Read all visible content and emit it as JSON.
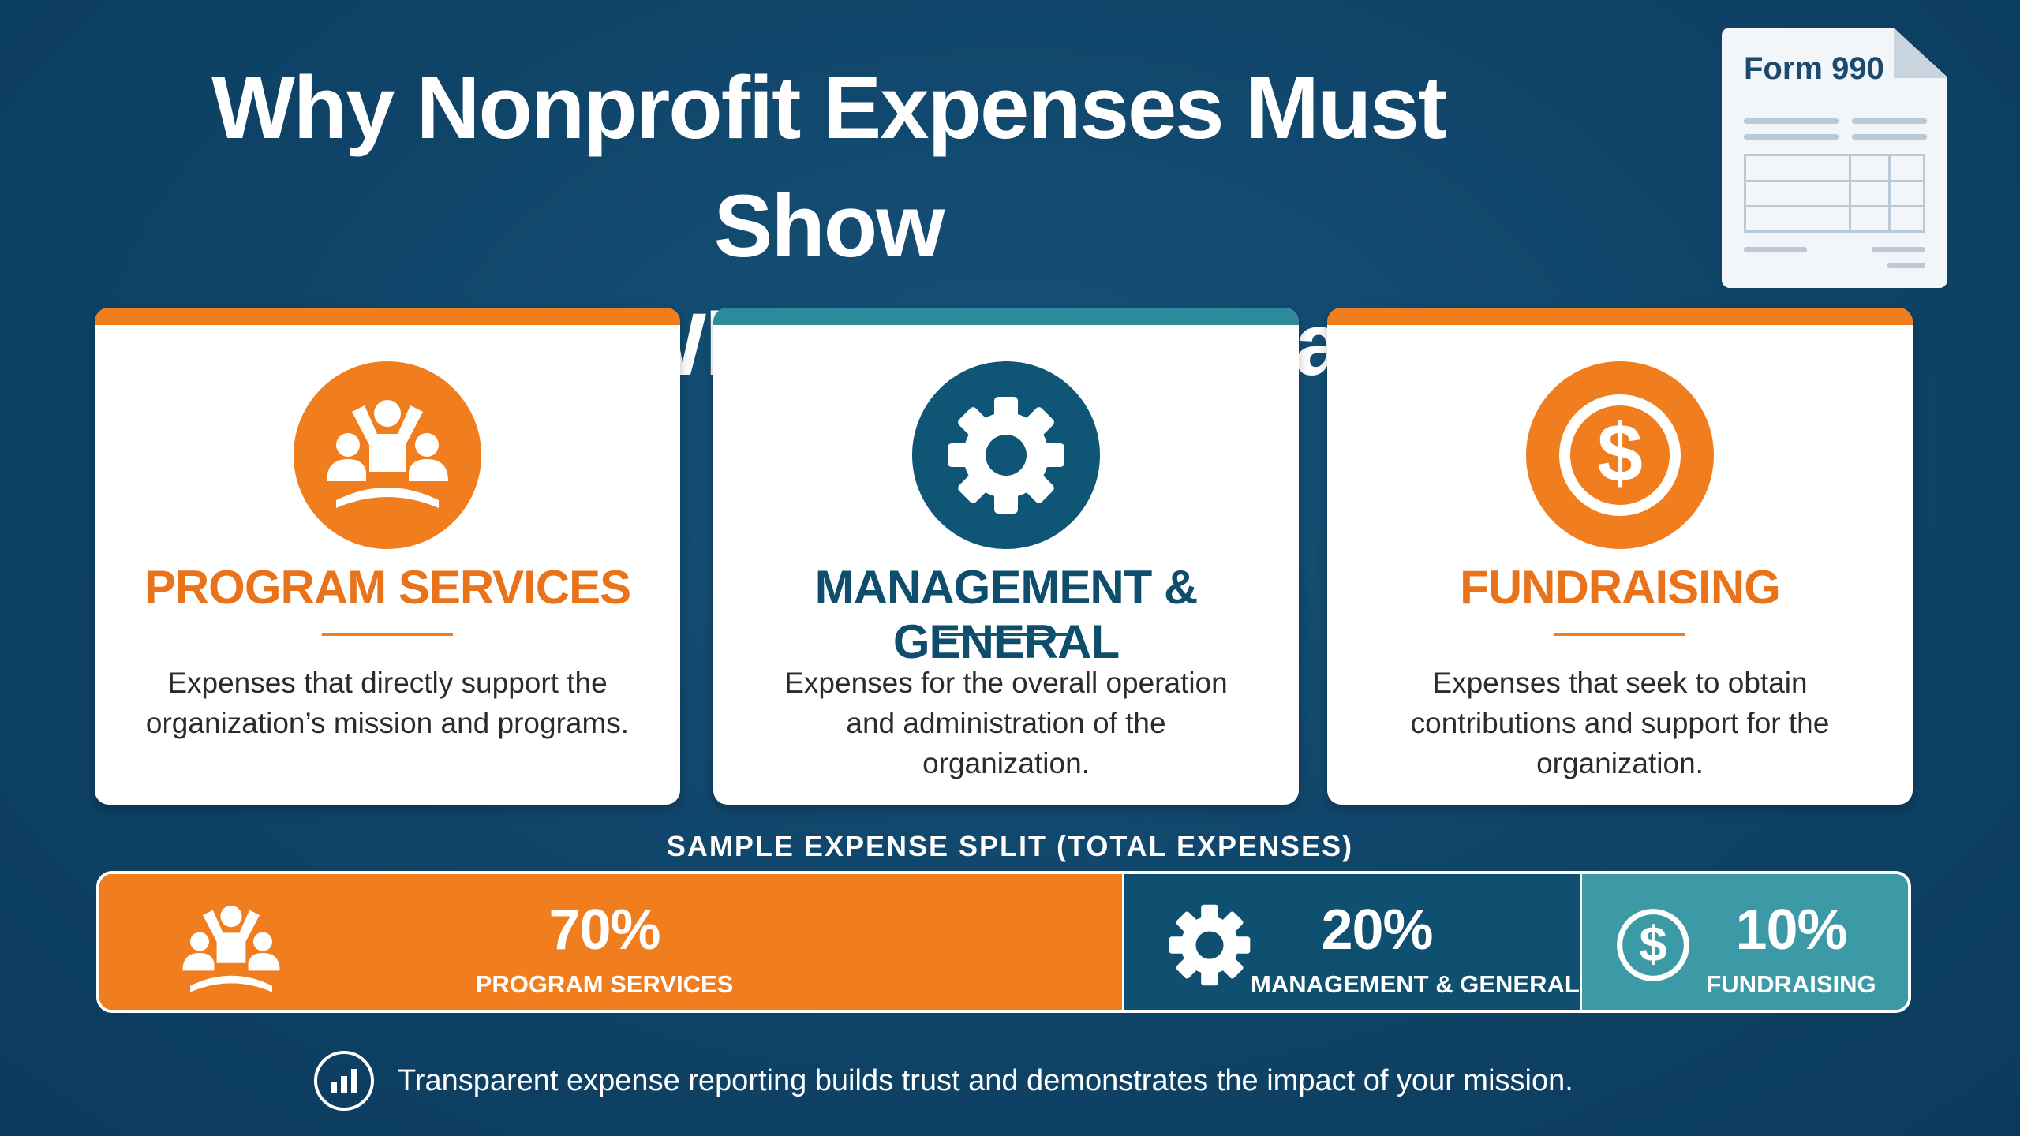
{
  "title": {
    "line1": "Why Nonprofit Expenses Must Show",
    "line2": "More Than What Was Purchased"
  },
  "document": {
    "label": "Form 990",
    "icon": "form-document-icon"
  },
  "colors": {
    "orange": "#F07E1F",
    "navy": "#0F5576",
    "teal": "#3C9AA6",
    "background": "#0F4468"
  },
  "categories": [
    {
      "title": "PROGRAM SERVICES",
      "description": "Expenses that directly support the organization’s mission and programs.",
      "icon": "people-icon",
      "color": "#F07E1F"
    },
    {
      "title": "MANAGEMENT & GENERAL",
      "description": "Expenses for the overall operation and administration of the organization.",
      "icon": "gear-icon",
      "color": "#0F5576"
    },
    {
      "title": "FUNDRAISING",
      "description": "Expenses that seek to obtain contributions and support for the organization.",
      "icon": "dollar-icon",
      "color": "#F07E1F"
    }
  ],
  "split": {
    "title": "SAMPLE EXPENSE SPLIT (TOTAL EXPENSES)",
    "segments": [
      {
        "percent": "70%",
        "label": "PROGRAM SERVICES",
        "value": 70,
        "icon": "people-icon",
        "color": "#F07E1F"
      },
      {
        "percent": "20%",
        "label": "MANAGEMENT & GENERAL",
        "value": 20,
        "icon": "gear-icon",
        "color": "#0F4F70"
      },
      {
        "percent": "10%",
        "label": "FUNDRAISING",
        "value": 10,
        "icon": "dollar-icon",
        "color": "#3C9AA6"
      }
    ]
  },
  "footer": {
    "text": "Transparent expense reporting builds trust and demonstrates the impact of your mission.",
    "icon": "bar-chart-icon"
  }
}
